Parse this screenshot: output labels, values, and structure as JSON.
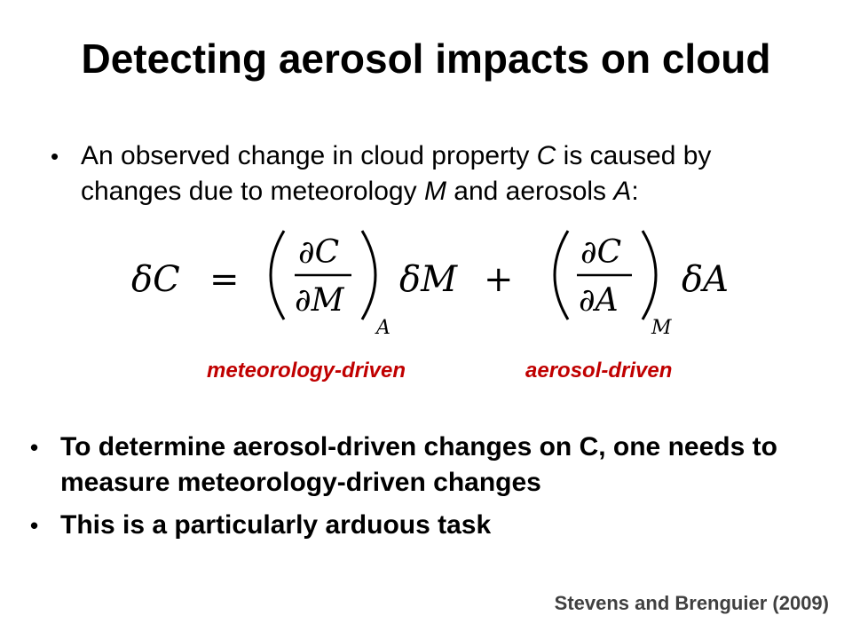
{
  "slide": {
    "title": "Detecting aerosol impacts on cloud",
    "bullet1": {
      "marker": "•",
      "parts": [
        {
          "text": "An observed change in cloud property ",
          "italic": false
        },
        {
          "text": "C",
          "italic": true
        },
        {
          "text": " is caused by changes due to meteorology ",
          "italic": false
        },
        {
          "text": "M",
          "italic": true
        },
        {
          "text": " and aerosols ",
          "italic": false
        },
        {
          "text": "A",
          "italic": true
        },
        {
          "text": ":",
          "italic": false
        }
      ]
    },
    "equation": {
      "lhs": "δC",
      "equals": "=",
      "term1": {
        "num": "∂C",
        "den": "∂M",
        "sub": "A",
        "factor": "δM"
      },
      "plus": "+",
      "term2": {
        "num": "∂C",
        "den": "∂A",
        "sub": "M",
        "factor": "δA"
      }
    },
    "labels": {
      "meteorology": "meteorology-driven",
      "aerosol": "aerosol-driven",
      "color": "#c00000"
    },
    "bullet2": {
      "marker": "•",
      "text": "To determine aerosol-driven changes on C, one needs to measure meteorology-driven changes"
    },
    "bullet3": {
      "marker": "•",
      "text": "This is a particularly arduous task"
    },
    "citation": "Stevens and Brenguier (2009)",
    "citation_color": "#404040"
  }
}
